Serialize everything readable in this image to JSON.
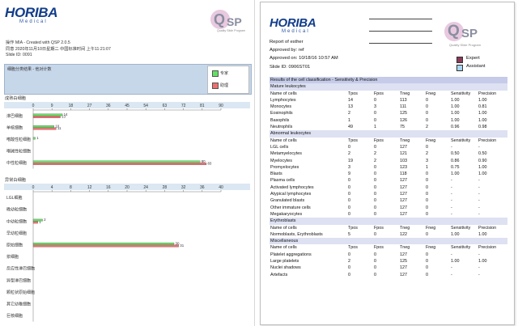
{
  "left": {
    "brand": "HORIBA",
    "brand_sub": "Medical",
    "qsp": {
      "q": "Q",
      "sp": "SP",
      "tagline": "Quality Slide Program"
    },
    "meta": [
      "操作 MIA - Created with QSP 2.0.5",
      "同意 2020年11月10日星期二 中国标准时间 上午11:21:07",
      "Slide ID: 0091"
    ],
    "panel_title": "细胞分类结果 - 他对计数",
    "legend": {
      "expert": "专家",
      "assistant": "助理"
    },
    "colors": {
      "expert": "#63e063",
      "assistant": "#ee6f6f",
      "header_band": "#c7d7ea",
      "axis_band": "#dbe7f2"
    },
    "sections": [
      {
        "label": "成熟白细胞",
        "axis_ticks": [
          "0",
          "9",
          "18",
          "27",
          "36",
          "45",
          "54",
          "63",
          "72",
          "81",
          "90"
        ]
      },
      {
        "label": "异常白细胞",
        "axis_ticks": [
          "0",
          "4",
          "8",
          "12",
          "16",
          "20",
          "24",
          "28",
          "32",
          "36",
          "40"
        ]
      }
    ]
  },
  "chart_data": [
    {
      "type": "bar",
      "title": "成熟白细胞",
      "orientation": "horizontal",
      "categories": [
        "淋巴细胞",
        "单核细胞",
        "嗜酸性粒细胞",
        "嗜碱性粒细胞",
        "中性粒细胞"
      ],
      "series": [
        {
          "name": "专家",
          "values": [
            14,
            10,
            1,
            0,
            80
          ]
        },
        {
          "name": "助理",
          "values": [
            13,
            11,
            0,
            0,
            83
          ]
        }
      ],
      "data_labels": [
        [
          "14",
          "10",
          "1",
          "",
          "80"
        ],
        [
          "13",
          "11",
          "",
          "",
          "83"
        ]
      ],
      "xlim": [
        0,
        90
      ]
    },
    {
      "type": "bar",
      "title": "异常白细胞",
      "orientation": "horizontal",
      "categories": [
        "LGL细胞",
        "晚幼粒细胞",
        "中幼粒细胞",
        "早幼粒细胞",
        "原始细胞",
        "浆细胞",
        "反应性淋巴细胞",
        "异型淋巴细胞",
        "颗粒状原始细胞",
        "其它幼稚细胞",
        "巨核细胞"
      ],
      "series": [
        {
          "name": "专家",
          "values": [
            0,
            0,
            2,
            0,
            30,
            0,
            0,
            0,
            0,
            0,
            0
          ]
        },
        {
          "name": "助理",
          "values": [
            0,
            0,
            1,
            0,
            31,
            0,
            0,
            0,
            0,
            0,
            0
          ]
        }
      ],
      "data_labels": [
        [
          "",
          "",
          "2",
          "",
          "30",
          "",
          "",
          "",
          "",
          "",
          ""
        ],
        [
          "",
          "",
          "1",
          "",
          "31",
          "",
          "",
          "",
          "",
          "",
          ""
        ]
      ],
      "xlim": [
        0,
        40
      ]
    }
  ],
  "right": {
    "brand": "HORIBA",
    "brand_sub": "Medical",
    "qsp": {
      "q": "Q",
      "sp": "SP",
      "tagline": "Quality Slide Program"
    },
    "meta": [
      "Report of esther",
      "Approved by: ref",
      "Approved on: 10/18/16 10:57 AM",
      "Slide ID: 0906ST01"
    ],
    "legend": {
      "expert": "Expert",
      "assistant": "Assistant"
    },
    "colors": {
      "expert": "#8b3a5a",
      "assistant": "#a9d6f0",
      "title_band": "#c5cbe8",
      "sub_band": "#dde1f2"
    },
    "table_title": "Results of the cell classification - Sensitivity & Precision",
    "columns": [
      "Name of cells",
      "Tpos",
      "Fpos",
      "Tneg",
      "Fneg",
      "Sensitivity",
      "Precision"
    ],
    "groups": [
      {
        "name": "Mature leukocytes",
        "rows": [
          [
            "Lymphocytes",
            "14",
            "0",
            "113",
            "0",
            "1.00",
            "1.00"
          ],
          [
            "Monocytes",
            "13",
            "3",
            "111",
            "0",
            "1.00",
            "0.81"
          ],
          [
            "Eosinophils",
            "2",
            "0",
            "125",
            "0",
            "1.00",
            "1.00"
          ],
          [
            "Basophils",
            "1",
            "0",
            "126",
            "0",
            "1.00",
            "1.00"
          ],
          [
            "Neutrophils",
            "49",
            "1",
            "75",
            "2",
            "0.96",
            "0.98"
          ]
        ]
      },
      {
        "name": "Abnormal leukocytes",
        "rows": [
          [
            "LGL cells",
            "0",
            "0",
            "127",
            "0",
            "-",
            "-"
          ],
          [
            "Metamyelocytes",
            "2",
            "2",
            "121",
            "2",
            "0.50",
            "0.50"
          ],
          [
            "Myelocytes",
            "19",
            "2",
            "103",
            "3",
            "0.86",
            "0.90"
          ],
          [
            "Promyelocytes",
            "3",
            "0",
            "123",
            "1",
            "0.75",
            "1.00"
          ],
          [
            "Blasts",
            "9",
            "0",
            "118",
            "0",
            "1.00",
            "1.00"
          ],
          [
            "Plasma cells",
            "0",
            "0",
            "127",
            "0",
            "-",
            "-"
          ],
          [
            "Activated lymphocytes",
            "0",
            "0",
            "127",
            "0",
            "-",
            "-"
          ],
          [
            "Atypical lymphocytes",
            "0",
            "0",
            "127",
            "0",
            "-",
            "-"
          ],
          [
            "Granulated blasts",
            "0",
            "0",
            "127",
            "0",
            "-",
            "-"
          ],
          [
            "Other immature cells",
            "0",
            "0",
            "127",
            "0",
            "-",
            "-"
          ],
          [
            "Megakaryocytes",
            "0",
            "0",
            "127",
            "0",
            "-",
            "-"
          ]
        ]
      },
      {
        "name": "Erythroblasts",
        "rows": [
          [
            "Normoblasts, Erythroblasts",
            "5",
            "0",
            "122",
            "0",
            "1.00",
            "1.00"
          ]
        ]
      },
      {
        "name": "Miscellaneous",
        "rows": [
          [
            "Platelet aggregations",
            "0",
            "0",
            "127",
            "0",
            "-",
            "-"
          ],
          [
            "Large platelets",
            "2",
            "0",
            "125",
            "0",
            "1.00",
            "1.00"
          ],
          [
            "Nuclei shadows",
            "0",
            "0",
            "127",
            "0",
            "-",
            "-"
          ],
          [
            "Artefacts",
            "0",
            "0",
            "127",
            "0",
            "-",
            "-"
          ]
        ]
      }
    ]
  }
}
